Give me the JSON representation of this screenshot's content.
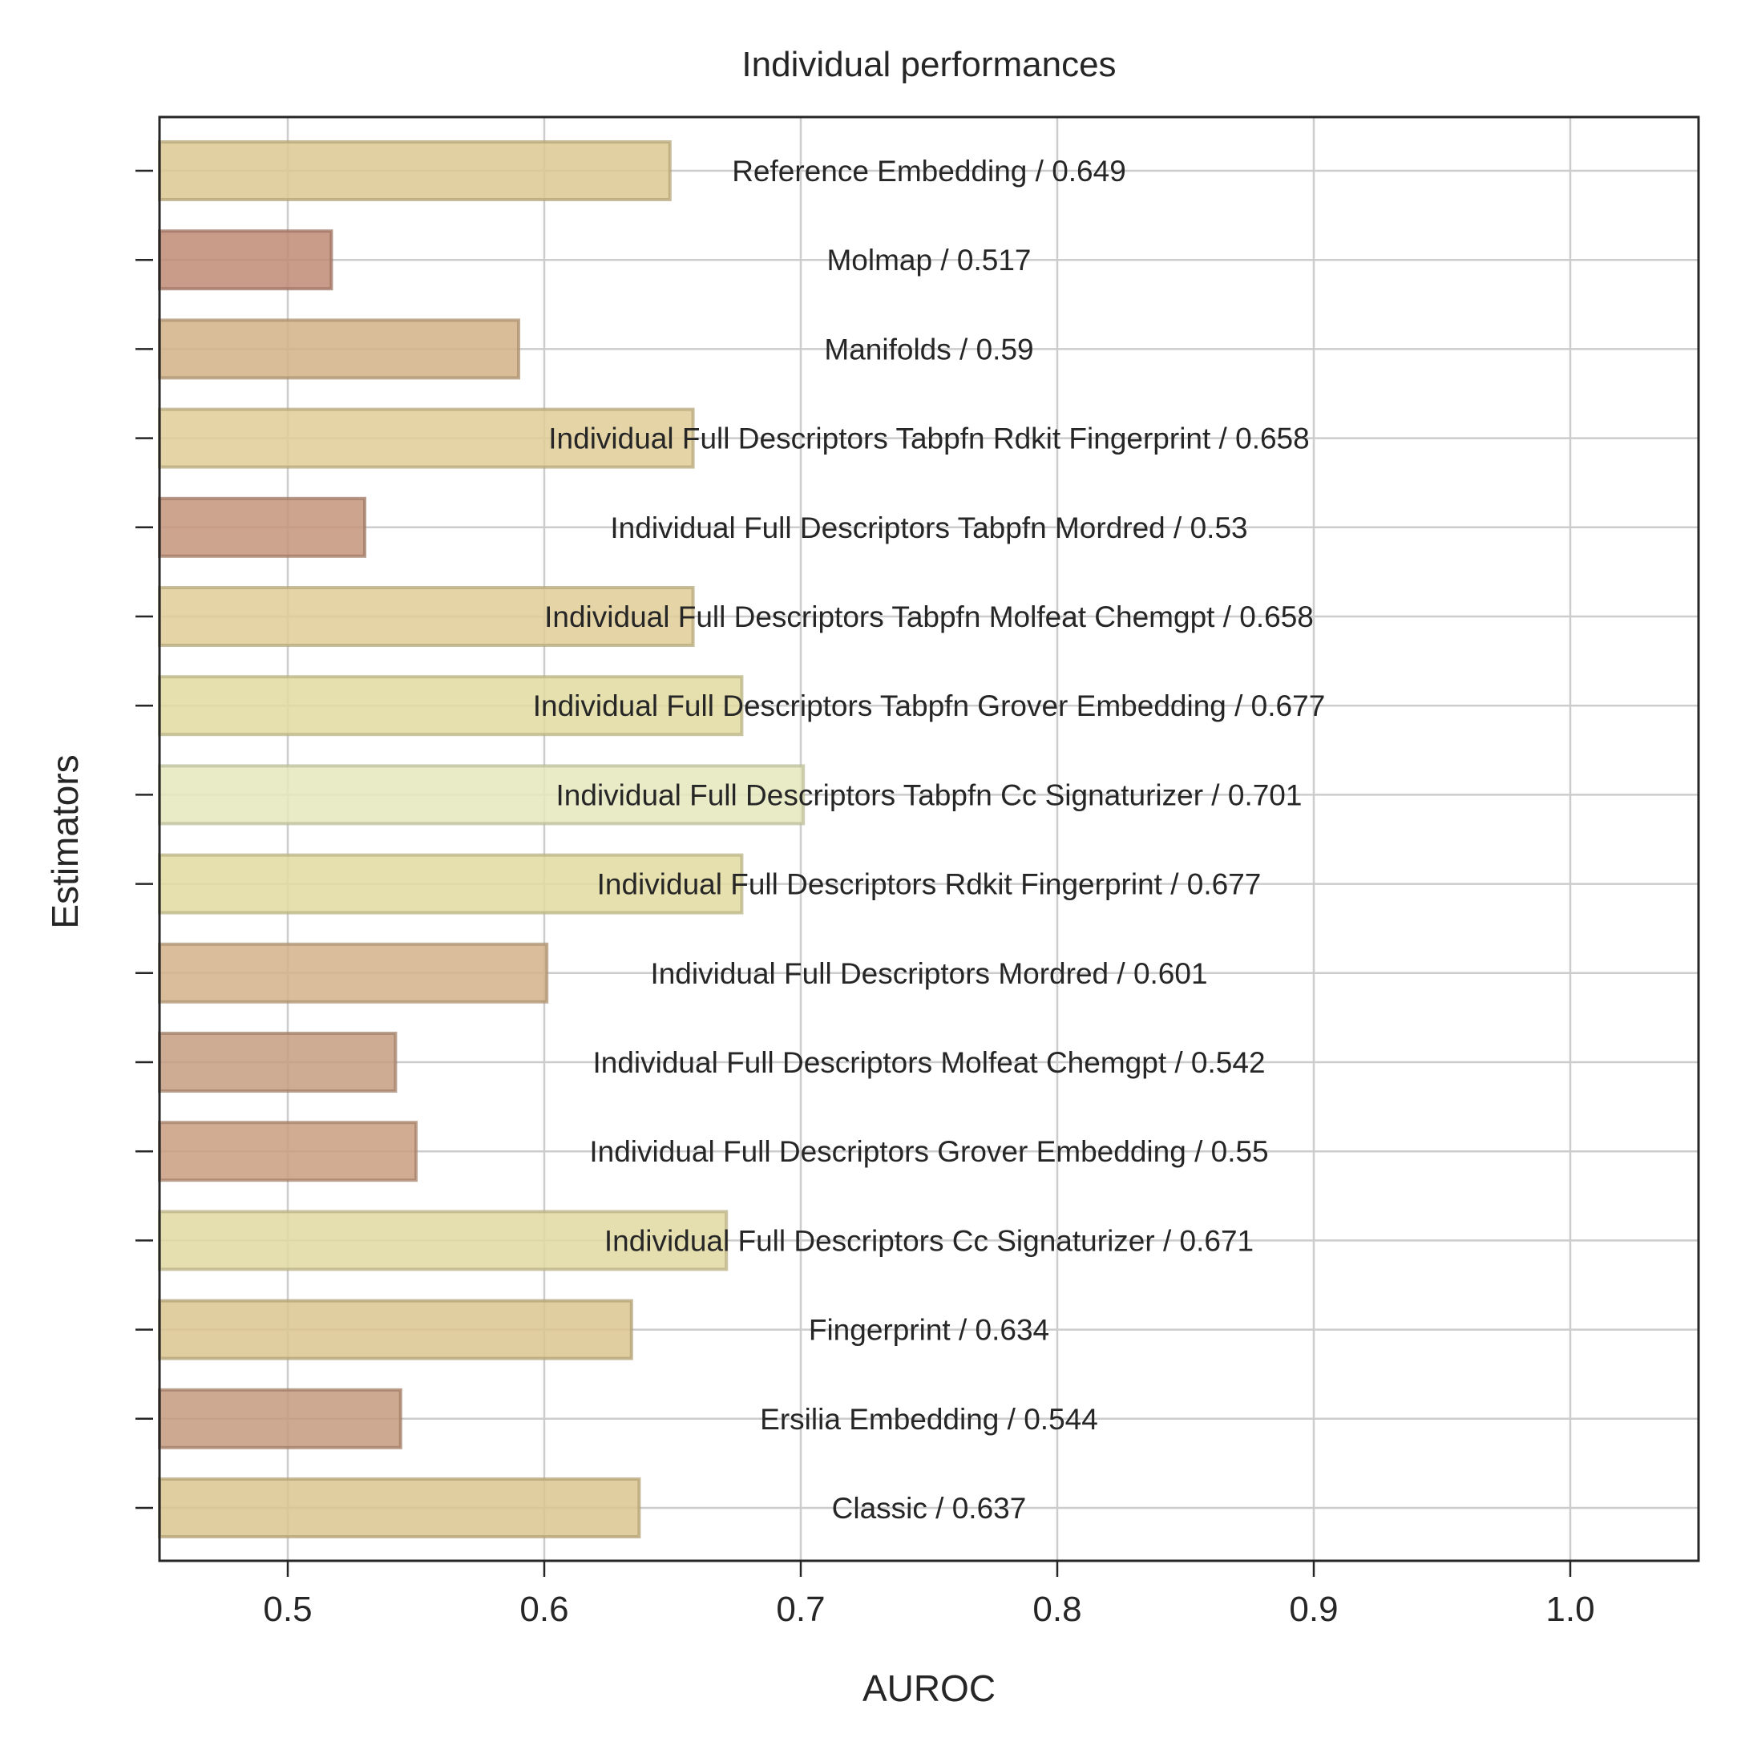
{
  "chart_data": {
    "type": "bar",
    "orientation": "horizontal",
    "title": "Individual performances",
    "xlabel": "AUROC",
    "ylabel": "Estimators",
    "xlim": [
      0.45,
      1.05
    ],
    "xticks": [
      0.5,
      0.6,
      0.7,
      0.8,
      0.9,
      1.0
    ],
    "xtick_labels": [
      "0.5",
      "0.6",
      "0.7",
      "0.8",
      "0.9",
      "1.0"
    ],
    "grid": true,
    "bars": [
      {
        "label": "Reference Embedding / 0.649",
        "value": 0.649,
        "color": "#dcc891"
      },
      {
        "label": "Molmap / 0.517",
        "value": 0.517,
        "color": "#c08b76"
      },
      {
        "label": "Manifolds / 0.59",
        "value": 0.59,
        "color": "#d2b086"
      },
      {
        "label": "Individual Full Descriptors Tabpfn Rdkit Fingerprint / 0.658",
        "value": 0.658,
        "color": "#dfcd96"
      },
      {
        "label": "Individual Full Descriptors Tabpfn Mordred / 0.53",
        "value": 0.53,
        "color": "#c4947a"
      },
      {
        "label": "Individual Full Descriptors Tabpfn Molfeat Chemgpt / 0.658",
        "value": 0.658,
        "color": "#dfcd96"
      },
      {
        "label": "Individual Full Descriptors Tabpfn Grover Embedding / 0.677",
        "value": 0.677,
        "color": "#e2daa0"
      },
      {
        "label": "Individual Full Descriptors Tabpfn Cc Signaturizer / 0.701",
        "value": 0.701,
        "color": "#e5e8bc"
      },
      {
        "label": "Individual Full Descriptors Rdkit Fingerprint / 0.677",
        "value": 0.677,
        "color": "#e2daa0"
      },
      {
        "label": "Individual Full Descriptors Mordred / 0.601",
        "value": 0.601,
        "color": "#d4b38a"
      },
      {
        "label": "Individual Full Descriptors Molfeat Chemgpt / 0.542",
        "value": 0.542,
        "color": "#c69c80"
      },
      {
        "label": "Individual Full Descriptors Grover Embedding / 0.55",
        "value": 0.55,
        "color": "#c99e80"
      },
      {
        "label": "Individual Full Descriptors Cc Signaturizer / 0.671",
        "value": 0.671,
        "color": "#e1d9a2"
      },
      {
        "label": "Fingerprint / 0.634",
        "value": 0.634,
        "color": "#dac48f"
      },
      {
        "label": "Ersilia Embedding / 0.544",
        "value": 0.544,
        "color": "#c69a7e"
      },
      {
        "label": "Classic / 0.637",
        "value": 0.637,
        "color": "#dbc590"
      }
    ]
  }
}
